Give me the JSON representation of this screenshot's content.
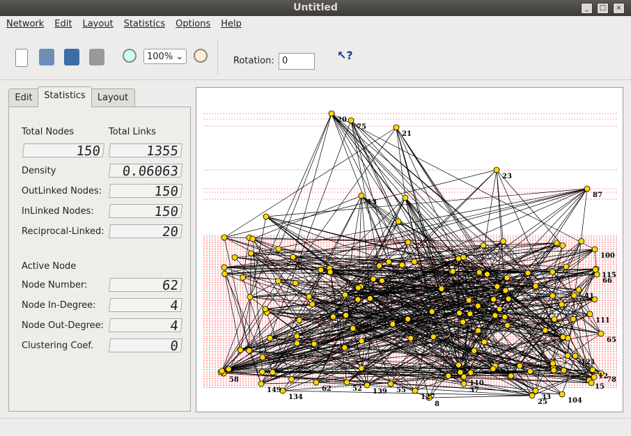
{
  "window": {
    "title": "Untitled"
  },
  "menu": [
    "Network",
    "Edit",
    "Layout",
    "Statistics",
    "Options",
    "Help"
  ],
  "toolbar": {
    "zoom": "100%",
    "rotation_label": "Rotation:",
    "rotation_value": "0"
  },
  "tabs": [
    "Edit",
    "Statistics",
    "Layout"
  ],
  "stats": {
    "total_nodes_label": "Total Nodes",
    "total_links_label": "Total Links",
    "total_nodes": "150",
    "total_links": "1355",
    "fields": [
      {
        "label": "Density",
        "value": "0.06063"
      },
      {
        "label": "OutLinked Nodes:",
        "value": "150"
      },
      {
        "label": "InLinked Nodes:",
        "value": "150"
      },
      {
        "label": "Reciprocal-Linked:",
        "value": "20"
      }
    ]
  },
  "active_node": {
    "heading": "Active Node",
    "fields": [
      {
        "label": "Node Number:",
        "value": "62"
      },
      {
        "label": "Node In-Degree:",
        "value": "4"
      },
      {
        "label": "Node Out-Degree:",
        "value": "4"
      },
      {
        "label": "Clustering Coef.",
        "value": "0"
      }
    ]
  },
  "graph": {
    "node_labels": [
      "20",
      "75",
      "21",
      "23",
      "87",
      "13",
      "100",
      "115",
      "66",
      "41",
      "111",
      "65",
      "121",
      "12",
      "78",
      "15",
      "104",
      "25",
      "33",
      "37",
      "8",
      "127",
      "55",
      "139",
      "52",
      "62",
      "134",
      "149",
      "58",
      "110"
    ]
  }
}
